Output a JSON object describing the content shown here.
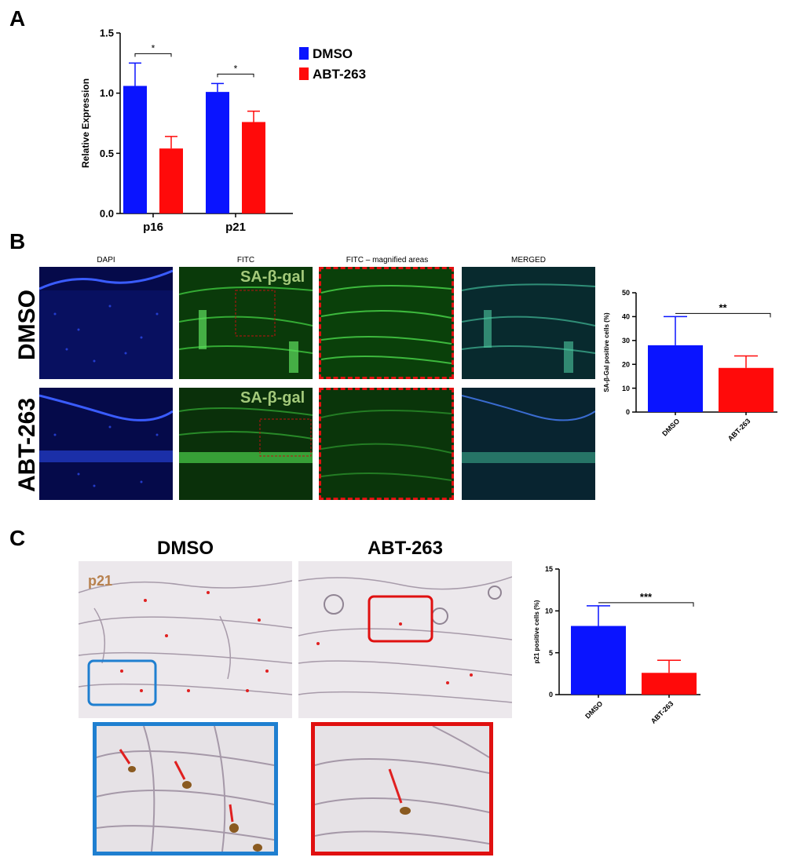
{
  "panels": {
    "a": {
      "letter": "A"
    },
    "b": {
      "letter": "B",
      "column_titles": [
        "DAPI",
        "FITC",
        "FITC – magnified areas",
        "MERGED"
      ],
      "row_labels": [
        "DMSO",
        "ABT-263"
      ],
      "stain_label": "SA-β-gal"
    },
    "c": {
      "letter": "C",
      "column_titles": [
        "DMSO",
        "ABT-263"
      ],
      "stain_label": "p21"
    }
  },
  "colors": {
    "dmso": "#0a14ff",
    "abt": "#ff0a0a",
    "dapi_bg": "#050a4a",
    "fitc_bg": "#0a3a0a",
    "histo_bg": "#ece8ec"
  },
  "chart_data": [
    {
      "id": "A",
      "type": "bar",
      "categories": [
        "p16",
        "p21"
      ],
      "series": [
        {
          "name": "DMSO",
          "values": [
            1.06,
            1.01
          ],
          "errors": [
            0.19,
            0.07
          ],
          "color": "#0a14ff"
        },
        {
          "name": "ABT-263",
          "values": [
            0.54,
            0.76
          ],
          "errors": [
            0.1,
            0.09
          ],
          "color": "#ff0a0a"
        }
      ],
      "ylabel": "Relative Expression",
      "ylim": [
        0,
        1.5
      ],
      "yticks": [
        "0.0",
        "0.5",
        "1.0",
        "1.5"
      ],
      "significance": [
        "*",
        "*"
      ],
      "legend": "top-right"
    },
    {
      "id": "B",
      "type": "bar",
      "categories": [
        "DMSO",
        "ABT-263"
      ],
      "values": [
        28,
        18.5
      ],
      "errors": [
        12,
        5
      ],
      "colors": [
        "#0a14ff",
        "#ff0a0a"
      ],
      "ylabel": "SA-β-Gal positive cells (%)",
      "ylim": [
        0,
        50
      ],
      "yticks": [
        "0",
        "10",
        "20",
        "30",
        "40",
        "50"
      ],
      "significance": "**"
    },
    {
      "id": "C",
      "type": "bar",
      "categories": [
        "DMSO",
        "ABT-263"
      ],
      "values": [
        8.2,
        2.6
      ],
      "errors": [
        2.4,
        1.5
      ],
      "colors": [
        "#0a14ff",
        "#ff0a0a"
      ],
      "ylabel": "p21 positive cells (%)",
      "ylim": [
        0,
        15
      ],
      "yticks": [
        "0",
        "5",
        "10",
        "15"
      ],
      "significance": "***"
    }
  ]
}
